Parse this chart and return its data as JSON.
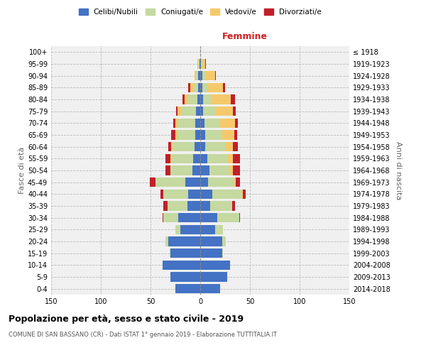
{
  "age_groups": [
    "0-4",
    "5-9",
    "10-14",
    "15-19",
    "20-24",
    "25-29",
    "30-34",
    "35-39",
    "40-44",
    "45-49",
    "50-54",
    "55-59",
    "60-64",
    "65-69",
    "70-74",
    "75-79",
    "80-84",
    "85-89",
    "90-94",
    "95-99",
    "100+"
  ],
  "birth_years": [
    "2014-2018",
    "2009-2013",
    "2004-2008",
    "1999-2003",
    "1994-1998",
    "1989-1993",
    "1984-1988",
    "1979-1983",
    "1974-1978",
    "1969-1973",
    "1964-1968",
    "1959-1963",
    "1954-1958",
    "1949-1953",
    "1944-1948",
    "1939-1943",
    "1934-1938",
    "1929-1933",
    "1924-1928",
    "1919-1923",
    "≤ 1918"
  ],
  "male_celibi": [
    25,
    30,
    38,
    30,
    32,
    20,
    22,
    13,
    12,
    15,
    8,
    7,
    6,
    5,
    5,
    4,
    3,
    2,
    2,
    1,
    0
  ],
  "male_coniugati": [
    0,
    0,
    0,
    1,
    3,
    5,
    15,
    20,
    25,
    30,
    22,
    22,
    22,
    18,
    17,
    15,
    9,
    5,
    2,
    1,
    0
  ],
  "male_vedovi": [
    0,
    0,
    0,
    0,
    0,
    0,
    0,
    0,
    0,
    0,
    0,
    1,
    1,
    2,
    3,
    4,
    4,
    3,
    2,
    1,
    0
  ],
  "male_divorziati": [
    0,
    0,
    0,
    0,
    0,
    0,
    1,
    4,
    3,
    6,
    5,
    5,
    3,
    4,
    2,
    1,
    2,
    2,
    0,
    0,
    0
  ],
  "female_celibi": [
    20,
    27,
    30,
    22,
    22,
    15,
    17,
    10,
    12,
    8,
    9,
    7,
    5,
    5,
    4,
    3,
    3,
    2,
    2,
    1,
    0
  ],
  "female_coniugati": [
    0,
    0,
    0,
    1,
    4,
    8,
    22,
    22,
    30,
    26,
    21,
    21,
    20,
    17,
    16,
    12,
    8,
    6,
    3,
    1,
    0
  ],
  "female_vedovi": [
    0,
    0,
    0,
    0,
    0,
    0,
    0,
    0,
    1,
    2,
    3,
    5,
    8,
    12,
    15,
    18,
    20,
    15,
    10,
    3,
    0
  ],
  "female_divorziati": [
    0,
    0,
    0,
    0,
    0,
    0,
    1,
    3,
    3,
    4,
    7,
    7,
    5,
    3,
    3,
    3,
    4,
    2,
    1,
    1,
    0
  ],
  "color_celibi": "#4472c4",
  "color_coniugati": "#c5d9a0",
  "color_vedovi": "#f5c96b",
  "color_divorziati": "#c0202a",
  "title": "Popolazione per età, sesso e stato civile - 2019",
  "subtitle": "COMUNE DI SAN BASSANO (CR) - Dati ISTAT 1° gennaio 2019 - Elaborazione TUTTITALIA.IT",
  "xlabel_right": "Femmine",
  "ylabel_left": "Fasce di età",
  "ylabel_right": "Anni di nascita",
  "xlim": 150,
  "background_color": "#ffffff"
}
